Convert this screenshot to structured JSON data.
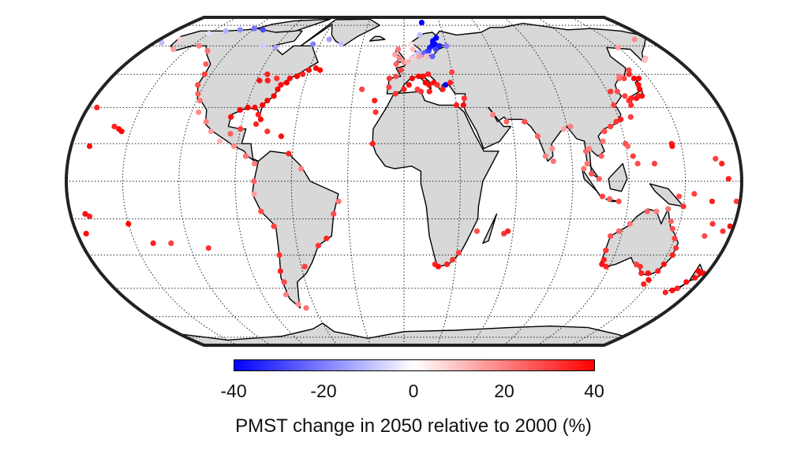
{
  "map": {
    "projection": "equal-earth",
    "graticule": "dotted",
    "land_color": "#d8d8d8",
    "ocean_color": "#ffffff",
    "marker_style": "filled circle"
  },
  "colorbar": {
    "min": -40,
    "max": 40,
    "ticks": [
      "-40",
      "-20",
      "0",
      "20",
      "40"
    ],
    "colormap": [
      "#0000ff",
      "#ffffff",
      "#ff0000"
    ],
    "label": "PMST change in 2050 relative to 2000 (%)"
  },
  "chart_data": {
    "type": "scatter",
    "x_meaning": "longitude",
    "y_meaning": "latitude",
    "value_meaning": "PMST change (%)",
    "points": [
      {
        "lon": -150,
        "lat": 68,
        "v": -5
      },
      {
        "lon": -140,
        "lat": 70,
        "v": -12
      },
      {
        "lon": -130,
        "lat": 71,
        "v": -18
      },
      {
        "lon": -120,
        "lat": 72,
        "v": -22
      },
      {
        "lon": -112,
        "lat": 71,
        "v": -28
      },
      {
        "lon": -165,
        "lat": 64,
        "v": 8
      },
      {
        "lon": -175,
        "lat": 62,
        "v": -10
      },
      {
        "lon": -160,
        "lat": 58,
        "v": 15
      },
      {
        "lon": -145,
        "lat": 60,
        "v": 20
      },
      {
        "lon": -135,
        "lat": 57,
        "v": 22
      },
      {
        "lon": -128,
        "lat": 50,
        "v": 25
      },
      {
        "lon": -124,
        "lat": 45,
        "v": 30
      },
      {
        "lon": -124,
        "lat": 40,
        "v": 28
      },
      {
        "lon": -121,
        "lat": 36,
        "v": 25
      },
      {
        "lon": -118,
        "lat": 33,
        "v": 22
      },
      {
        "lon": -116,
        "lat": 28,
        "v": 18
      },
      {
        "lon": -110,
        "lat": 24,
        "v": 20
      },
      {
        "lon": -106,
        "lat": 20,
        "v": 15
      },
      {
        "lon": -100,
        "lat": 16,
        "v": 12
      },
      {
        "lon": -92,
        "lat": 14,
        "v": 18
      },
      {
        "lon": -85,
        "lat": 10,
        "v": 22
      },
      {
        "lon": -80,
        "lat": 7,
        "v": 20
      },
      {
        "lon": -80,
        "lat": 0,
        "v": 25
      },
      {
        "lon": -80,
        "lat": -5,
        "v": 15
      },
      {
        "lon": -77,
        "lat": -12,
        "v": 28
      },
      {
        "lon": -71,
        "lat": -18,
        "v": 30
      },
      {
        "lon": -71,
        "lat": -30,
        "v": 32
      },
      {
        "lon": -73,
        "lat": -37,
        "v": 35
      },
      {
        "lon": -73,
        "lat": -42,
        "v": 28
      },
      {
        "lon": -75,
        "lat": -48,
        "v": 20
      },
      {
        "lon": -70,
        "lat": -53,
        "v": 18
      },
      {
        "lon": -66,
        "lat": -55,
        "v": 22
      },
      {
        "lon": -58,
        "lat": -35,
        "v": 30
      },
      {
        "lon": -48,
        "lat": -26,
        "v": 32
      },
      {
        "lon": -43,
        "lat": -23,
        "v": 35
      },
      {
        "lon": -38,
        "lat": -13,
        "v": 28
      },
      {
        "lon": -35,
        "lat": -8,
        "v": 22
      },
      {
        "lon": -55,
        "lat": 5,
        "v": 20
      },
      {
        "lon": -62,
        "lat": 11,
        "v": 35
      },
      {
        "lon": -67,
        "lat": 18,
        "v": 38
      },
      {
        "lon": -75,
        "lat": 20,
        "v": 32
      },
      {
        "lon": -82,
        "lat": 23,
        "v": 35
      },
      {
        "lon": -90,
        "lat": 21,
        "v": 30
      },
      {
        "lon": -95,
        "lat": 19,
        "v": 25
      },
      {
        "lon": -97,
        "lat": 26,
        "v": 38
      },
      {
        "lon": -93,
        "lat": 29,
        "v": 40
      },
      {
        "lon": -89,
        "lat": 30,
        "v": 40
      },
      {
        "lon": -85,
        "lat": 30,
        "v": 38
      },
      {
        "lon": -82,
        "lat": 27,
        "v": 35
      },
      {
        "lon": -80,
        "lat": 25,
        "v": 38
      },
      {
        "lon": -81,
        "lat": 31,
        "v": 40
      },
      {
        "lon": -79,
        "lat": 33,
        "v": 40
      },
      {
        "lon": -76,
        "lat": 35,
        "v": 40
      },
      {
        "lon": -75,
        "lat": 38,
        "v": 40
      },
      {
        "lon": -74,
        "lat": 40,
        "v": 38
      },
      {
        "lon": -71,
        "lat": 41,
        "v": 40
      },
      {
        "lon": -70,
        "lat": 43,
        "v": 38
      },
      {
        "lon": -66,
        "lat": 44,
        "v": 40
      },
      {
        "lon": -63,
        "lat": 45,
        "v": 35
      },
      {
        "lon": -60,
        "lat": 47,
        "v": 38
      },
      {
        "lon": -56,
        "lat": 48,
        "v": 40
      },
      {
        "lon": -53,
        "lat": 47,
        "v": 40
      },
      {
        "lon": -85,
        "lat": 45,
        "v": 35
      },
      {
        "lon": -88,
        "lat": 42,
        "v": 38
      },
      {
        "lon": -83,
        "lat": 42,
        "v": 36
      },
      {
        "lon": -78,
        "lat": 43,
        "v": 32
      },
      {
        "lon": -100,
        "lat": 60,
        "v": -8
      },
      {
        "lon": -90,
        "lat": 59,
        "v": -15
      },
      {
        "lon": -65,
        "lat": 61,
        "v": -20
      },
      {
        "lon": -55,
        "lat": 64,
        "v": -15
      },
      {
        "lon": -45,
        "lat": 61,
        "v": -10
      },
      {
        "lon": -160,
        "lat": 22,
        "v": 35
      },
      {
        "lon": -157,
        "lat": 21,
        "v": 38
      },
      {
        "lon": -155,
        "lat": 20,
        "v": 40
      },
      {
        "lon": -175,
        "lat": 30,
        "v": 35
      },
      {
        "lon": -170,
        "lat": 14,
        "v": 38
      },
      {
        "lon": -170,
        "lat": -14,
        "v": 35
      },
      {
        "lon": -172,
        "lat": -13,
        "v": 38
      },
      {
        "lon": -150,
        "lat": -17,
        "v": 40
      },
      {
        "lon": -140,
        "lat": -25,
        "v": 35
      },
      {
        "lon": -175,
        "lat": -21,
        "v": 38
      },
      {
        "lon": -130,
        "lat": -25,
        "v": 30
      },
      {
        "lon": -110,
        "lat": -27,
        "v": 32
      },
      {
        "lon": -25,
        "lat": 38,
        "v": 30
      },
      {
        "lon": -17,
        "lat": 33,
        "v": 35
      },
      {
        "lon": -16,
        "lat": 28,
        "v": 32
      },
      {
        "lon": -17,
        "lat": 15,
        "v": 35
      },
      {
        "lon": -9,
        "lat": 39,
        "v": 30
      },
      {
        "lon": -9,
        "lat": 43,
        "v": 32
      },
      {
        "lon": -5,
        "lat": 44,
        "v": 28
      },
      {
        "lon": -2,
        "lat": 47,
        "v": 30
      },
      {
        "lon": -5,
        "lat": 50,
        "v": 25
      },
      {
        "lon": -3,
        "lat": 53,
        "v": 20
      },
      {
        "lon": -6,
        "lat": 55,
        "v": 15
      },
      {
        "lon": -4,
        "lat": 58,
        "v": 22
      },
      {
        "lon": 0,
        "lat": 51,
        "v": 18
      },
      {
        "lon": 2,
        "lat": 51,
        "v": 12
      },
      {
        "lon": 5,
        "lat": 53,
        "v": 8
      },
      {
        "lon": 6,
        "lat": 58,
        "v": 10
      },
      {
        "lon": 8,
        "lat": 55,
        "v": -5
      },
      {
        "lon": 10,
        "lat": 56,
        "v": -10
      },
      {
        "lon": 12,
        "lat": 55,
        "v": -15
      },
      {
        "lon": 14,
        "lat": 56,
        "v": -25
      },
      {
        "lon": 17,
        "lat": 57,
        "v": -30
      },
      {
        "lon": 18,
        "lat": 59,
        "v": -35
      },
      {
        "lon": 20,
        "lat": 60,
        "v": -38
      },
      {
        "lon": 22,
        "lat": 61,
        "v": -40
      },
      {
        "lon": 21,
        "lat": 63,
        "v": -40
      },
      {
        "lon": 24,
        "lat": 65,
        "v": -40
      },
      {
        "lon": 25,
        "lat": 60,
        "v": -35
      },
      {
        "lon": 22,
        "lat": 58,
        "v": -30
      },
      {
        "lon": 19,
        "lat": 54,
        "v": -25
      },
      {
        "lon": 15,
        "lat": 54,
        "v": 10
      },
      {
        "lon": 10,
        "lat": 54,
        "v": 15
      },
      {
        "lon": 30,
        "lat": 60,
        "v": -20
      },
      {
        "lon": 12,
        "lat": 67,
        "v": -10
      },
      {
        "lon": 5,
        "lat": 61,
        "v": 5
      },
      {
        "lon": 15,
        "lat": 78,
        "v": -40
      },
      {
        "lon": -5,
        "lat": 36,
        "v": 32
      },
      {
        "lon": 0,
        "lat": 38,
        "v": 35
      },
      {
        "lon": 3,
        "lat": 40,
        "v": 38
      },
      {
        "lon": 5,
        "lat": 43,
        "v": 40
      },
      {
        "lon": 9,
        "lat": 44,
        "v": 40
      },
      {
        "lon": 12,
        "lat": 44,
        "v": 38
      },
      {
        "lon": 13,
        "lat": 41,
        "v": 40
      },
      {
        "lon": 15,
        "lat": 40,
        "v": 38
      },
      {
        "lon": 15,
        "lat": 37,
        "v": 35
      },
      {
        "lon": 10,
        "lat": 37,
        "v": 32
      },
      {
        "lon": 18,
        "lat": 41,
        "v": 38
      },
      {
        "lon": 15,
        "lat": 45,
        "v": 35
      },
      {
        "lon": 20,
        "lat": 40,
        "v": 32
      },
      {
        "lon": 23,
        "lat": 38,
        "v": 35
      },
      {
        "lon": 25,
        "lat": 40,
        "v": -40
      },
      {
        "lon": 28,
        "lat": 41,
        "v": 35
      },
      {
        "lon": 30,
        "lat": 46,
        "v": 30
      },
      {
        "lon": 34,
        "lat": 31,
        "v": 38
      },
      {
        "lon": 30,
        "lat": 31,
        "v": 35
      },
      {
        "lon": 35,
        "lat": 34,
        "v": 32
      },
      {
        "lon": 8,
        "lat": 38,
        "v": 30
      },
      {
        "lon": 18,
        "lat": -34,
        "v": 35
      },
      {
        "lon": 20,
        "lat": -35,
        "v": 38
      },
      {
        "lon": 25,
        "lat": -34,
        "v": 35
      },
      {
        "lon": 28,
        "lat": -32,
        "v": 32
      },
      {
        "lon": 31,
        "lat": -29,
        "v": 30
      },
      {
        "lon": 40,
        "lat": -20,
        "v": 28
      },
      {
        "lon": 57,
        "lat": -20,
        "v": 35
      },
      {
        "lon": 55,
        "lat": -21,
        "v": 32
      },
      {
        "lon": 50,
        "lat": 27,
        "v": 20
      },
      {
        "lon": 57,
        "lat": 24,
        "v": 25
      },
      {
        "lon": 67,
        "lat": 24,
        "v": 28
      },
      {
        "lon": 73,
        "lat": 18,
        "v": 25
      },
      {
        "lon": 76,
        "lat": 10,
        "v": 20
      },
      {
        "lon": 80,
        "lat": 8,
        "v": 22
      },
      {
        "lon": 80,
        "lat": 13,
        "v": 18
      },
      {
        "lon": 88,
        "lat": 21,
        "v": 15
      },
      {
        "lon": 92,
        "lat": 22,
        "v": 20
      },
      {
        "lon": 98,
        "lat": 12,
        "v": 25
      },
      {
        "lon": 98,
        "lat": 7,
        "v": 22
      },
      {
        "lon": 100,
        "lat": 3,
        "v": 28
      },
      {
        "lon": 104,
        "lat": 1,
        "v": 25
      },
      {
        "lon": 106,
        "lat": -6,
        "v": 30
      },
      {
        "lon": 110,
        "lat": -7,
        "v": 25
      },
      {
        "lon": 115,
        "lat": -8,
        "v": 28
      },
      {
        "lon": 96,
        "lat": 5,
        "v": 22
      },
      {
        "lon": 100,
        "lat": 13,
        "v": 20
      },
      {
        "lon": 106,
        "lat": 10,
        "v": 25
      },
      {
        "lon": 108,
        "lat": 16,
        "v": 22
      },
      {
        "lon": 110,
        "lat": 20,
        "v": 28
      },
      {
        "lon": 114,
        "lat": 22,
        "v": 30
      },
      {
        "lon": 118,
        "lat": 24,
        "v": 32
      },
      {
        "lon": 121,
        "lat": 25,
        "v": 35
      },
      {
        "lon": 120,
        "lat": 15,
        "v": 28
      },
      {
        "lon": 121,
        "lat": 14,
        "v": 25
      },
      {
        "lon": 123,
        "lat": 10,
        "v": 30
      },
      {
        "lon": 125,
        "lat": 7,
        "v": 28
      },
      {
        "lon": 120,
        "lat": 31,
        "v": 30
      },
      {
        "lon": 122,
        "lat": 37,
        "v": 32
      },
      {
        "lon": 126,
        "lat": 37,
        "v": 28
      },
      {
        "lon": 129,
        "lat": 35,
        "v": 30
      },
      {
        "lon": 130,
        "lat": 33,
        "v": 32
      },
      {
        "lon": 132,
        "lat": 34,
        "v": 35
      },
      {
        "lon": 135,
        "lat": 34,
        "v": 38
      },
      {
        "lon": 137,
        "lat": 35,
        "v": 35
      },
      {
        "lon": 139,
        "lat": 35,
        "v": 38
      },
      {
        "lon": 140,
        "lat": 38,
        "v": 40
      },
      {
        "lon": 141,
        "lat": 40,
        "v": 38
      },
      {
        "lon": 141,
        "lat": 43,
        "v": 40
      },
      {
        "lon": 144,
        "lat": 43,
        "v": 38
      },
      {
        "lon": 140,
        "lat": 45,
        "v": 35
      },
      {
        "lon": 135,
        "lat": 43,
        "v": 30
      },
      {
        "lon": 132,
        "lat": 43,
        "v": 25
      },
      {
        "lon": 142,
        "lat": 47,
        "v": 30
      },
      {
        "lon": 133,
        "lat": 44,
        "v": 22
      },
      {
        "lon": 150,
        "lat": 59,
        "v": 15
      },
      {
        "lon": 160,
        "lat": 53,
        "v": 12
      },
      {
        "lon": 170,
        "lat": 64,
        "v": 18
      },
      {
        "lon": 158,
        "lat": 52,
        "v": 10
      },
      {
        "lon": 127,
        "lat": 26,
        "v": 30
      },
      {
        "lon": 130,
        "lat": 31,
        "v": 32
      },
      {
        "lon": 145,
        "lat": 15,
        "v": 35
      },
      {
        "lon": 145,
        "lat": 14,
        "v": 38
      },
      {
        "lon": 134,
        "lat": 7,
        "v": 30
      },
      {
        "lon": 150,
        "lat": -10,
        "v": 32
      },
      {
        "lon": 147,
        "lat": -6,
        "v": 28
      },
      {
        "lon": 155,
        "lat": -5,
        "v": 30
      },
      {
        "lon": 165,
        "lat": -8,
        "v": 35
      },
      {
        "lon": 168,
        "lat": -17,
        "v": 32
      },
      {
        "lon": 173,
        "lat": 1,
        "v": 35
      },
      {
        "lon": 167,
        "lat": 9,
        "v": 30
      },
      {
        "lon": 170,
        "lat": 7,
        "v": 35
      },
      {
        "lon": 178,
        "lat": -18,
        "v": 38
      },
      {
        "lon": 175,
        "lat": -20,
        "v": 32
      },
      {
        "lon": 166,
        "lat": -22,
        "v": 28
      },
      {
        "lon": 178,
        "lat": -8,
        "v": 30
      },
      {
        "lon": 172,
        "lat": -42,
        "v": 38
      },
      {
        "lon": 174,
        "lat": -37,
        "v": 40
      },
      {
        "lon": 175,
        "lat": -40,
        "v": 38
      },
      {
        "lon": 170,
        "lat": -45,
        "v": 35
      },
      {
        "lon": 168,
        "lat": -46,
        "v": 38
      },
      {
        "lon": 176,
        "lat": -38,
        "v": 40
      },
      {
        "lon": 178,
        "lat": -38,
        "v": 38
      },
      {
        "lon": 165,
        "lat": -47,
        "v": 35
      },
      {
        "lon": 115,
        "lat": -32,
        "v": 35
      },
      {
        "lon": 115,
        "lat": -34,
        "v": 38
      },
      {
        "lon": 118,
        "lat": -35,
        "v": 35
      },
      {
        "lon": 114,
        "lat": -28,
        "v": 32
      },
      {
        "lon": 114,
        "lat": -22,
        "v": 28
      },
      {
        "lon": 118,
        "lat": -20,
        "v": 25
      },
      {
        "lon": 123,
        "lat": -17,
        "v": 22
      },
      {
        "lon": 131,
        "lat": -12,
        "v": 25
      },
      {
        "lon": 136,
        "lat": -12,
        "v": 20
      },
      {
        "lon": 142,
        "lat": -11,
        "v": 22
      },
      {
        "lon": 145,
        "lat": -16,
        "v": 25
      },
      {
        "lon": 147,
        "lat": -19,
        "v": 28
      },
      {
        "lon": 150,
        "lat": -23,
        "v": 30
      },
      {
        "lon": 153,
        "lat": -27,
        "v": 32
      },
      {
        "lon": 153,
        "lat": -30,
        "v": 35
      },
      {
        "lon": 151,
        "lat": -34,
        "v": 38
      },
      {
        "lon": 150,
        "lat": -37,
        "v": 35
      },
      {
        "lon": 145,
        "lat": -38,
        "v": 38
      },
      {
        "lon": 141,
        "lat": -38,
        "v": 35
      },
      {
        "lon": 138,
        "lat": -35,
        "v": 32
      },
      {
        "lon": 135,
        "lat": -34,
        "v": 30
      },
      {
        "lon": 147,
        "lat": -43,
        "v": 35
      },
      {
        "lon": 148,
        "lat": -41,
        "v": 38
      }
    ]
  }
}
